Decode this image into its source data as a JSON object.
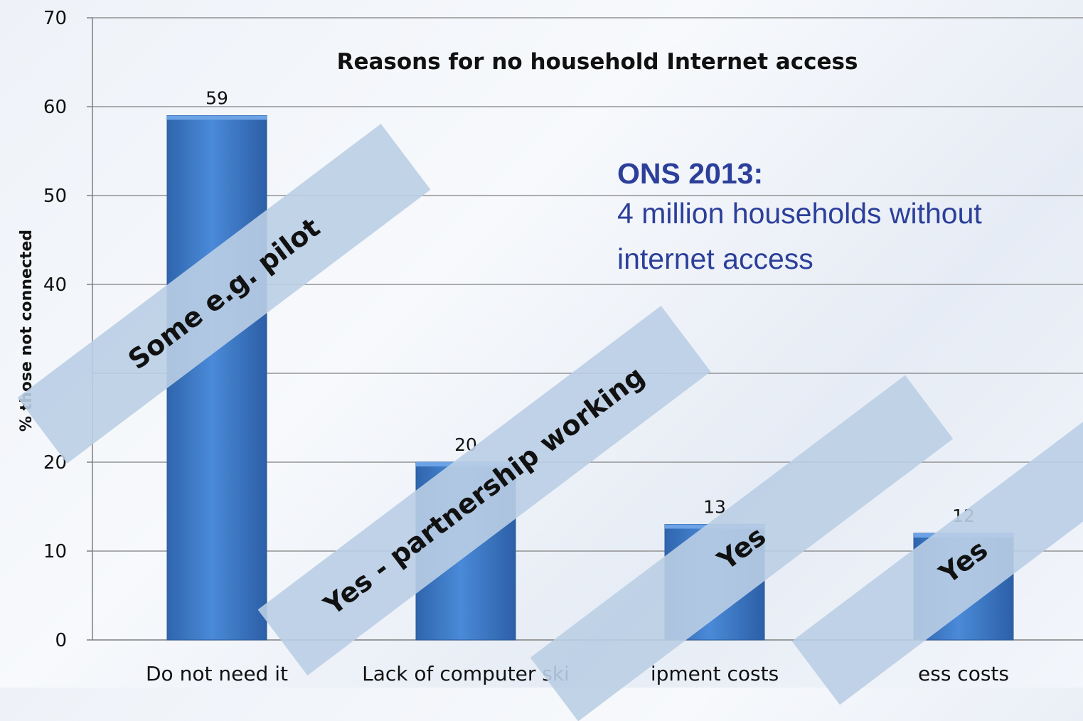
{
  "chart_data": {
    "type": "bar",
    "title": "Reasons for no household Internet access",
    "ylabel": "% those not connected",
    "xlabel": "",
    "ylim": [
      0,
      70
    ],
    "yticks": [
      0,
      10,
      20,
      40,
      50,
      60,
      70
    ],
    "grid": true,
    "categories": [
      "Do not need it",
      "Lack of computer ski",
      "ipment costs",
      "ess costs"
    ],
    "values": [
      59,
      20,
      13,
      12
    ],
    "bar_color": "#3a77c6"
  },
  "annotation": {
    "heading": "ONS 2013:",
    "text": "4 million households without internet access"
  },
  "banners": [
    {
      "text": "Some e.g. pilot"
    },
    {
      "text": "Yes - partnership working"
    },
    {
      "text": "Yes"
    },
    {
      "text": "Yes"
    }
  ]
}
